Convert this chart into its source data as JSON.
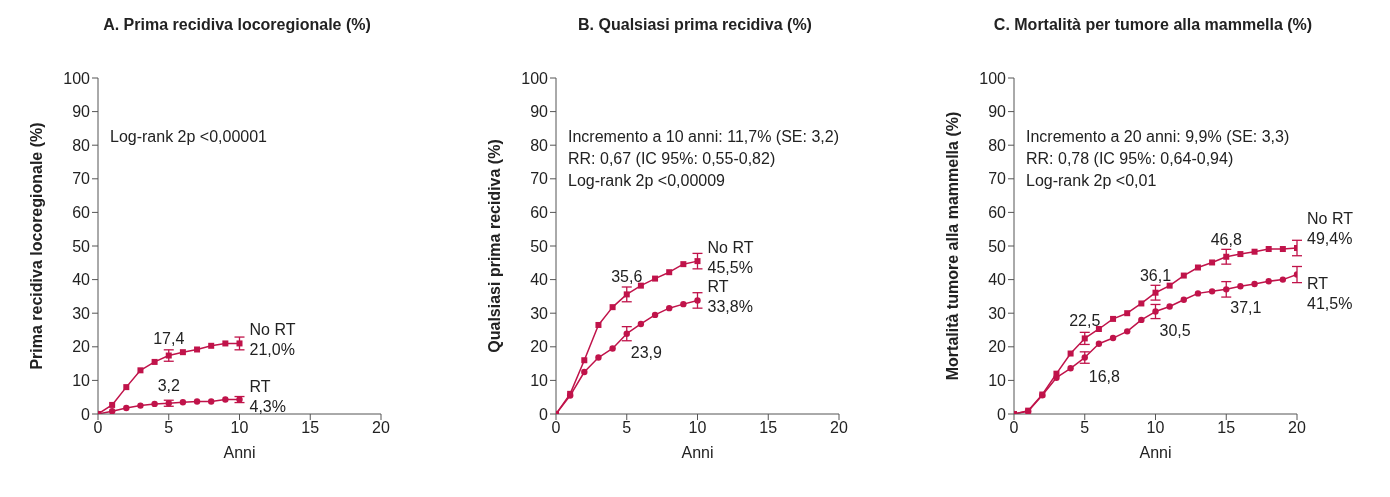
{
  "chart_data": [
    {
      "type": "line",
      "title": "A. Prima recidiva locoregionale (%)",
      "xlabel": "Anni",
      "ylabel": "Prima recidiva locoregionale (%)",
      "x": [
        0,
        1,
        2,
        3,
        4,
        5,
        6,
        7,
        8,
        9,
        10
      ],
      "xlim": [
        0,
        20
      ],
      "xticks": [
        0,
        5,
        10,
        15,
        20
      ],
      "ylim": [
        0,
        100
      ],
      "yticks": [
        0,
        10,
        20,
        30,
        40,
        50,
        60,
        70,
        80,
        90,
        100
      ],
      "annotations": [
        "Log-rank 2p <0,00001"
      ],
      "series": [
        {
          "name": "No RT",
          "color": "#c0134a",
          "marker": "square",
          "values": [
            0,
            2.7,
            8,
            13,
            15.5,
            17.4,
            18.4,
            19.2,
            20.3,
            21.0,
            21.0
          ],
          "errors": [
            null,
            null,
            null,
            null,
            null,
            1.7,
            null,
            null,
            null,
            null,
            1.9
          ],
          "value_labels": [
            null,
            null,
            null,
            null,
            null,
            "17,4",
            null,
            null,
            null,
            null,
            "21,0%"
          ]
        },
        {
          "name": "RT",
          "color": "#c0134a",
          "marker": "circle",
          "values": [
            0,
            0.8,
            1.8,
            2.5,
            3.0,
            3.2,
            3.5,
            3.7,
            3.7,
            4.3,
            4.3
          ],
          "errors": [
            null,
            null,
            null,
            null,
            null,
            0.9,
            null,
            null,
            null,
            null,
            0.9
          ],
          "value_labels": [
            null,
            null,
            null,
            null,
            null,
            "3,2",
            null,
            null,
            null,
            null,
            "4,3%"
          ]
        }
      ]
    },
    {
      "type": "line",
      "title": "B. Qualsiasi prima recidiva (%)",
      "xlabel": "Anni",
      "ylabel": "Qualsiasi prima recidiva (%)",
      "x": [
        0,
        1,
        2,
        3,
        4,
        5,
        6,
        7,
        8,
        9,
        10
      ],
      "xlim": [
        0,
        20
      ],
      "xticks": [
        0,
        5,
        10,
        15,
        20
      ],
      "ylim": [
        0,
        100
      ],
      "yticks": [
        0,
        10,
        20,
        30,
        40,
        50,
        60,
        70,
        80,
        90,
        100
      ],
      "annotations": [
        "Incremento a 10 anni: 11,7% (SE: 3,2)",
        "RR: 0,67 (IC 95%: 0,55-0,82)",
        "Log-rank 2p <0,00009"
      ],
      "series": [
        {
          "name": "No RT",
          "color": "#c0134a",
          "marker": "square",
          "values": [
            0,
            6,
            16,
            26.5,
            31.8,
            35.6,
            38.2,
            40.3,
            42.2,
            44.6,
            45.5
          ],
          "errors": [
            null,
            null,
            null,
            null,
            null,
            2.2,
            null,
            null,
            null,
            null,
            2.3
          ],
          "value_labels": [
            null,
            null,
            null,
            null,
            null,
            "35,6",
            null,
            null,
            null,
            null,
            "45,5%"
          ]
        },
        {
          "name": "RT",
          "color": "#c0134a",
          "marker": "circle",
          "values": [
            0,
            5.5,
            12.5,
            16.8,
            19.5,
            23.9,
            26.8,
            29.5,
            31.5,
            32.7,
            33.8
          ],
          "errors": [
            null,
            null,
            null,
            null,
            null,
            2.1,
            null,
            null,
            null,
            null,
            2.3
          ],
          "value_labels": [
            null,
            null,
            null,
            null,
            null,
            "23,9",
            null,
            null,
            null,
            null,
            "33,8%"
          ]
        }
      ]
    },
    {
      "type": "line",
      "title": "C. Mortalità per tumore alla mammella (%)",
      "xlabel": "Anni",
      "ylabel": "Mortalità tumore alla mammella (%)",
      "x": [
        0,
        1,
        2,
        3,
        4,
        5,
        6,
        7,
        8,
        9,
        10,
        11,
        12,
        13,
        14,
        15,
        16,
        17,
        18,
        19,
        20
      ],
      "xlim": [
        0,
        20
      ],
      "xticks": [
        0,
        5,
        10,
        15,
        20
      ],
      "ylim": [
        0,
        100
      ],
      "yticks": [
        0,
        10,
        20,
        30,
        40,
        50,
        60,
        70,
        80,
        90,
        100
      ],
      "annotations": [
        "Incremento a 20 anni: 9,9% (SE: 3,3)",
        "RR: 0,78 (IC 95%: 0,64-0,94)",
        "Log-rank 2p <0,01"
      ],
      "series": [
        {
          "name": "No RT",
          "color": "#c0134a",
          "marker": "square",
          "values": [
            0,
            1,
            5.8,
            12,
            18,
            22.5,
            25.3,
            28.3,
            30,
            32.9,
            36.1,
            38.2,
            41.2,
            43.6,
            45.1,
            46.8,
            47.6,
            48.3,
            49.1,
            49.1,
            49.4
          ],
          "errors": [
            null,
            null,
            null,
            null,
            null,
            1.8,
            null,
            null,
            null,
            null,
            2.2,
            null,
            null,
            null,
            null,
            2.2,
            null,
            null,
            null,
            null,
            2.3
          ],
          "value_labels": [
            null,
            null,
            null,
            null,
            null,
            "22,5",
            null,
            null,
            null,
            null,
            "36,1",
            null,
            null,
            null,
            null,
            "46,8",
            null,
            null,
            null,
            null,
            "49,4%"
          ]
        },
        {
          "name": "RT",
          "color": "#c0134a",
          "marker": "circle",
          "values": [
            0,
            0.8,
            5.6,
            10.8,
            13.6,
            16.8,
            20.9,
            22.6,
            24.6,
            28,
            30.5,
            32,
            34,
            35.9,
            36.5,
            37.1,
            38,
            38.7,
            39.5,
            40,
            41.5
          ],
          "errors": [
            null,
            null,
            null,
            null,
            null,
            1.7,
            null,
            null,
            null,
            null,
            2.1,
            null,
            null,
            null,
            null,
            2.3,
            null,
            null,
            null,
            null,
            2.4
          ],
          "value_labels": [
            null,
            null,
            null,
            null,
            null,
            "16,8",
            null,
            null,
            null,
            null,
            "30,5",
            null,
            null,
            null,
            null,
            "37,1",
            null,
            null,
            null,
            null,
            "41,5%"
          ]
        }
      ]
    }
  ]
}
